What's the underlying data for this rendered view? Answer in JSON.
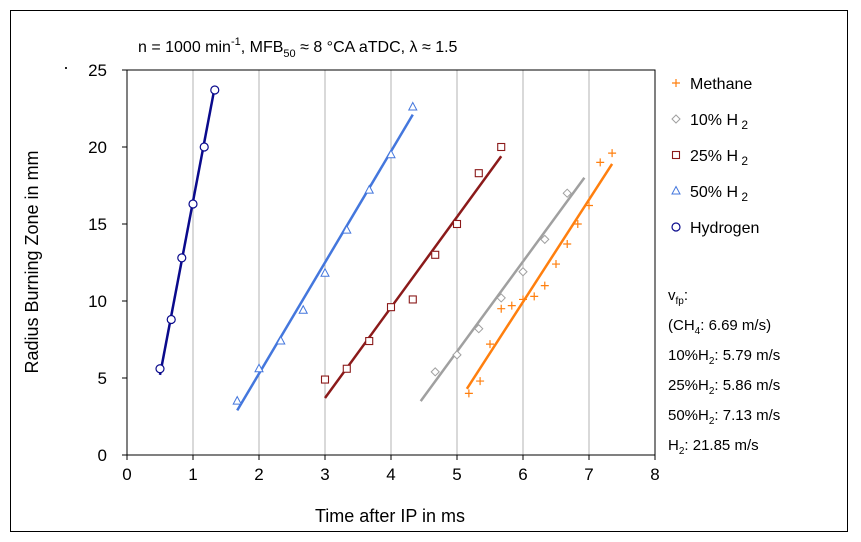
{
  "chart_data": {
    "type": "scatter",
    "title": "n = 1000 min⁻¹, MFB₅₀ ≈ 8 °CA aTDC, λ ≈ 1.5",
    "title_parts": {
      "p1": "n = 1000 min",
      "sup1": "-1",
      "p2": ", MFB",
      "sub1": "50",
      "p3": " ≈ 8 °CA aTDC, λ ≈ 1.5"
    },
    "xlabel": "Time after IP in ms",
    "ylabel": "Radius Burning Zone in mm",
    "xlim": [
      0,
      8
    ],
    "ylim": [
      0,
      25
    ],
    "xticks": [
      "0",
      "1",
      "2",
      "3",
      "4",
      "5",
      "6",
      "7",
      "8"
    ],
    "yticks": [
      "0",
      "5",
      "10",
      "15",
      "20",
      "25"
    ],
    "grid": "vertical",
    "legend_position": "right",
    "series": [
      {
        "name": "Methane",
        "marker": "plus",
        "color": "#ff7f0e",
        "points": [
          [
            5.18,
            4.0
          ],
          [
            5.35,
            4.8
          ],
          [
            5.5,
            7.2
          ],
          [
            5.67,
            9.5
          ],
          [
            5.83,
            9.7
          ],
          [
            6.0,
            10.1
          ],
          [
            6.17,
            10.3
          ],
          [
            6.33,
            11.0
          ],
          [
            6.5,
            12.4
          ],
          [
            6.67,
            13.7
          ],
          [
            6.83,
            15.0
          ],
          [
            7.0,
            16.2
          ],
          [
            7.17,
            19.0
          ],
          [
            7.35,
            19.6
          ]
        ],
        "fit": [
          [
            5.15,
            4.3
          ],
          [
            7.35,
            18.9
          ]
        ]
      },
      {
        "name": "10% H 2",
        "name_parts": {
          "base": "10% H",
          "sub": "2"
        },
        "marker": "diamond",
        "color": "#a0a0a0",
        "points": [
          [
            4.67,
            5.4
          ],
          [
            5.0,
            6.5
          ],
          [
            5.33,
            8.2
          ],
          [
            5.67,
            10.2
          ],
          [
            6.0,
            11.9
          ],
          [
            6.33,
            14.0
          ],
          [
            6.67,
            17.0
          ]
        ],
        "fit": [
          [
            4.45,
            3.5
          ],
          [
            6.93,
            18.0
          ]
        ]
      },
      {
        "name": "25% H 2",
        "name_parts": {
          "base": "25% H",
          "sub": "2"
        },
        "marker": "square",
        "color": "#8b1a1a",
        "points": [
          [
            3.0,
            4.9
          ],
          [
            3.33,
            5.6
          ],
          [
            3.67,
            7.4
          ],
          [
            4.0,
            9.6
          ],
          [
            4.33,
            10.1
          ],
          [
            4.67,
            13.0
          ],
          [
            5.0,
            15.0
          ],
          [
            5.33,
            18.3
          ],
          [
            5.67,
            20.0
          ]
        ],
        "fit": [
          [
            3.0,
            3.7
          ],
          [
            5.67,
            19.4
          ]
        ]
      },
      {
        "name": "50% H 2",
        "name_parts": {
          "base": "50% H",
          "sub": "2"
        },
        "marker": "triangle",
        "color": "#4477dd",
        "points": [
          [
            1.67,
            3.5
          ],
          [
            2.0,
            5.6
          ],
          [
            2.33,
            7.4
          ],
          [
            2.67,
            9.4
          ],
          [
            3.0,
            11.8
          ],
          [
            3.33,
            14.6
          ],
          [
            3.67,
            17.2
          ],
          [
            4.0,
            19.5
          ],
          [
            4.33,
            22.6
          ]
        ],
        "fit": [
          [
            1.67,
            2.9
          ],
          [
            4.33,
            22.1
          ]
        ]
      },
      {
        "name": "Hydrogen",
        "marker": "circle",
        "color": "#0a0a8c",
        "points": [
          [
            0.5,
            5.6
          ],
          [
            0.67,
            8.8
          ],
          [
            0.83,
            12.8
          ],
          [
            1.0,
            16.3
          ],
          [
            1.17,
            20.0
          ],
          [
            1.33,
            23.7
          ]
        ],
        "fit": [
          [
            0.5,
            5.2
          ],
          [
            1.33,
            23.9
          ]
        ]
      }
    ],
    "annotation": {
      "heading": {
        "base": "v",
        "sub": "fp",
        "tail": ":"
      },
      "lines": [
        {
          "pre": "(CH",
          "sub": "4",
          "post": ": 6.69 m/s)"
        },
        {
          "pre": "10%H",
          "sub": "2",
          "post": ": 5.79 m/s"
        },
        {
          "pre": "25%H",
          "sub": "2",
          "post": ": 5.86 m/s"
        },
        {
          "pre": "50%H",
          "sub": "2",
          "post": ": 7.13 m/s"
        },
        {
          "pre": "H",
          "sub": "2",
          "post": ": 21.85 m/s"
        }
      ]
    },
    "stray_mark": "·"
  }
}
